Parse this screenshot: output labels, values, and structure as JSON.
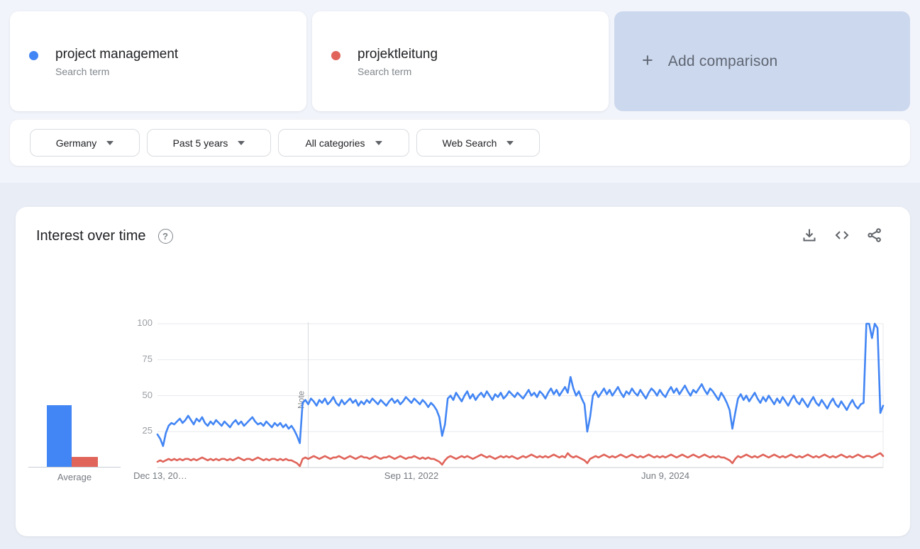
{
  "terms": [
    {
      "label": "project management",
      "sublabel": "Search term",
      "color": "#4285f4"
    },
    {
      "label": "projektleitung",
      "sublabel": "Search term",
      "color": "#e0645a"
    }
  ],
  "add_comparison": {
    "plus": "+",
    "label": "Add comparison"
  },
  "filters": [
    {
      "label": "Germany"
    },
    {
      "label": "Past 5 years"
    },
    {
      "label": "All categories"
    },
    {
      "label": "Web Search"
    }
  ],
  "chart_card": {
    "title": "Interest over time",
    "help_icon": "?",
    "toolbar_icons": [
      "download-icon",
      "embed-icon",
      "share-icon"
    ]
  },
  "chart_data": {
    "type": "line",
    "title": "Interest over time",
    "xlabel": "",
    "ylabel": "",
    "ylim": [
      0,
      100
    ],
    "grid": true,
    "y_ticks": [
      25,
      50,
      75,
      100
    ],
    "x_tick_labels": [
      "Dec 13, 20…",
      "Sep 11, 2022",
      "Jun 9, 2024"
    ],
    "x_tick_week_index": [
      1,
      91,
      182
    ],
    "note_label": "Note",
    "note_week_index": 54,
    "average_label": "Average",
    "series": [
      {
        "name": "project management",
        "color": "#4285f4",
        "average": 43,
        "values": [
          23,
          20,
          15,
          24,
          29,
          31,
          30,
          32,
          34,
          31,
          33,
          36,
          33,
          30,
          34,
          32,
          35,
          31,
          29,
          32,
          30,
          33,
          31,
          29,
          32,
          30,
          28,
          31,
          33,
          30,
          32,
          29,
          31,
          33,
          35,
          32,
          30,
          31,
          29,
          32,
          30,
          28,
          31,
          29,
          31,
          28,
          30,
          27,
          29,
          26,
          22,
          17,
          45,
          47,
          44,
          48,
          46,
          43,
          47,
          45,
          48,
          44,
          46,
          49,
          45,
          43,
          47,
          44,
          46,
          48,
          45,
          47,
          43,
          46,
          44,
          47,
          45,
          48,
          46,
          44,
          47,
          45,
          43,
          46,
          48,
          45,
          47,
          44,
          46,
          49,
          47,
          45,
          48,
          46,
          44,
          47,
          45,
          42,
          45,
          43,
          40,
          35,
          22,
          30,
          48,
          50,
          47,
          52,
          49,
          46,
          50,
          53,
          48,
          51,
          47,
          50,
          52,
          49,
          53,
          50,
          47,
          51,
          49,
          52,
          48,
          50,
          53,
          51,
          49,
          52,
          50,
          48,
          51,
          54,
          50,
          52,
          49,
          53,
          51,
          48,
          52,
          55,
          51,
          54,
          50,
          53,
          56,
          52,
          63,
          55,
          50,
          53,
          48,
          44,
          25,
          35,
          50,
          53,
          49,
          52,
          55,
          51,
          54,
          50,
          53,
          56,
          52,
          49,
          53,
          51,
          55,
          52,
          50,
          54,
          51,
          48,
          52,
          55,
          53,
          50,
          54,
          51,
          49,
          53,
          56,
          52,
          55,
          51,
          54,
          57,
          53,
          50,
          54,
          52,
          55,
          58,
          54,
          51,
          55,
          53,
          50,
          47,
          52,
          49,
          45,
          40,
          27,
          38,
          48,
          51,
          47,
          50,
          46,
          49,
          52,
          48,
          45,
          49,
          46,
          50,
          47,
          44,
          48,
          45,
          49,
          46,
          43,
          47,
          50,
          46,
          44,
          48,
          45,
          42,
          46,
          49,
          45,
          43,
          47,
          44,
          41,
          45,
          48,
          44,
          42,
          46,
          43,
          40,
          44,
          47,
          43,
          41,
          44,
          45,
          100,
          100,
          90,
          100,
          97,
          38,
          43
        ]
      },
      {
        "name": "projektleitung",
        "color": "#e0645a",
        "average": 7,
        "values": [
          4,
          5,
          4,
          5,
          6,
          5,
          6,
          5,
          6,
          5,
          6,
          6,
          5,
          6,
          5,
          6,
          7,
          6,
          5,
          6,
          5,
          6,
          5,
          6,
          6,
          5,
          6,
          5,
          6,
          7,
          6,
          5,
          6,
          6,
          5,
          6,
          7,
          6,
          5,
          6,
          5,
          6,
          6,
          5,
          6,
          5,
          6,
          5,
          5,
          4,
          3,
          1,
          6,
          7,
          6,
          7,
          8,
          7,
          6,
          7,
          8,
          7,
          6,
          7,
          7,
          8,
          7,
          6,
          7,
          8,
          7,
          6,
          7,
          8,
          7,
          7,
          6,
          7,
          8,
          7,
          6,
          7,
          7,
          8,
          7,
          6,
          7,
          8,
          7,
          6,
          7,
          7,
          8,
          7,
          6,
          7,
          6,
          7,
          6,
          6,
          5,
          4,
          2,
          5,
          7,
          8,
          7,
          6,
          7,
          8,
          7,
          8,
          7,
          6,
          7,
          8,
          9,
          8,
          7,
          8,
          7,
          6,
          7,
          8,
          7,
          8,
          7,
          8,
          7,
          6,
          7,
          8,
          7,
          8,
          9,
          8,
          7,
          8,
          7,
          8,
          7,
          8,
          9,
          8,
          7,
          8,
          7,
          10,
          8,
          7,
          8,
          7,
          6,
          5,
          3,
          6,
          7,
          8,
          7,
          8,
          9,
          8,
          7,
          8,
          7,
          8,
          9,
          8,
          7,
          8,
          9,
          8,
          7,
          8,
          7,
          8,
          9,
          8,
          7,
          8,
          7,
          8,
          7,
          8,
          9,
          8,
          7,
          8,
          9,
          8,
          7,
          8,
          9,
          8,
          7,
          8,
          9,
          8,
          7,
          8,
          7,
          8,
          7,
          7,
          6,
          5,
          3,
          6,
          8,
          7,
          8,
          9,
          8,
          7,
          8,
          7,
          8,
          9,
          8,
          7,
          8,
          9,
          8,
          7,
          8,
          7,
          8,
          9,
          8,
          7,
          8,
          7,
          8,
          9,
          8,
          7,
          8,
          7,
          8,
          9,
          8,
          7,
          8,
          7,
          8,
          9,
          8,
          7,
          8,
          7,
          8,
          9,
          8,
          7,
          8,
          8,
          7,
          8,
          9,
          10,
          8
        ]
      }
    ]
  }
}
